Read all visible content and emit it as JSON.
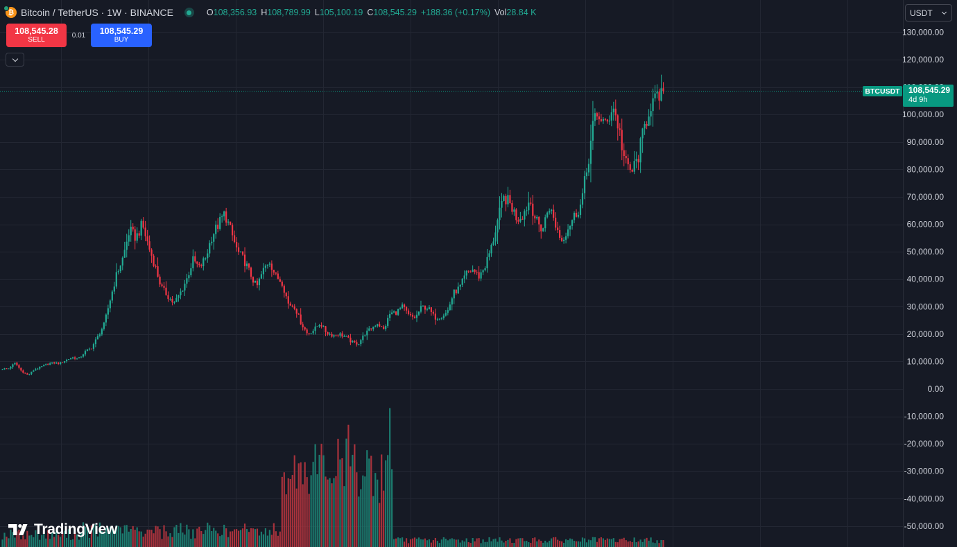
{
  "header": {
    "symbol_title": "Bitcoin / TetherUS · 1W · BINANCE",
    "ohlc": [
      {
        "key": "O",
        "value": "108,356.93"
      },
      {
        "key": "H",
        "value": "108,789.99"
      },
      {
        "key": "L",
        "value": "105,100.19"
      },
      {
        "key": "C",
        "value": "108,545.29"
      },
      {
        "key": "",
        "value": "+188.36 (+0.17%)"
      },
      {
        "key": "Vol",
        "value": "28.84 K"
      }
    ],
    "icon": "bitcoin-tether-icon"
  },
  "trade": {
    "sell_price": "108,545.28",
    "sell_label": "SELL",
    "spread": "0.01",
    "buy_price": "108,545.29",
    "buy_label": "BUY"
  },
  "currency_select": {
    "value": "USDT"
  },
  "price_tag": {
    "symbol": "BTCUSDT",
    "price": "108,545.29",
    "countdown": "4d 9h"
  },
  "brand": {
    "logo_text": "TradingView",
    "icon": "tradingview-logo-icon"
  },
  "colors": {
    "background": "#161a25",
    "grid": "#232733",
    "up": "#22ab94",
    "down": "#f23645",
    "volume_up": "#1c7a6e",
    "volume_down": "#a8323c",
    "price_tag": "#089981",
    "axis_text": "#d1d4dc"
  },
  "chart_data": {
    "type": "candlestick",
    "timeframe": "1W",
    "current_price": 108545.29,
    "ylim": [
      -55000,
      133000
    ],
    "y_ticks": [
      "130,000.00",
      "120,000.00",
      "110,000.00",
      "100,000.00",
      "90,000.00",
      "80,000.00",
      "70,000.00",
      "60,000.00",
      "50,000.00",
      "40,000.00",
      "30,000.00",
      "20,000.00",
      "10,000.00",
      "0.00",
      "-10,000.00",
      "-20,000.00",
      "-30,000.00",
      "-40,000.00",
      "-50,000.00"
    ],
    "y_tick_values": [
      130000,
      120000,
      110000,
      100000,
      90000,
      80000,
      70000,
      60000,
      50000,
      40000,
      30000,
      20000,
      10000,
      0,
      -10000,
      -20000,
      -30000,
      -40000,
      -50000
    ],
    "weekly_close_anchors": [
      7300,
      7500,
      9500,
      6500,
      5000,
      7000,
      8000,
      9000,
      9500,
      9300,
      10500,
      11500,
      11000,
      13500,
      15000,
      19000,
      23500,
      33000,
      42000,
      48000,
      58000,
      55000,
      60000,
      52000,
      45000,
      37000,
      34000,
      31000,
      35000,
      40000,
      47000,
      44000,
      48000,
      56000,
      60000,
      64000,
      57000,
      50000,
      47000,
      42000,
      37000,
      43000,
      47000,
      41000,
      39000,
      31000,
      30000,
      24000,
      20000,
      21500,
      24000,
      20500,
      19500,
      20000,
      19000,
      17000,
      16500,
      20000,
      22000,
      24000,
      21500,
      27500,
      28000,
      30000,
      26500,
      26000,
      30000,
      29500,
      26000,
      26500,
      28000,
      35000,
      37000,
      42000,
      43500,
      41000,
      45000,
      52000,
      62000,
      70000,
      67000,
      62000,
      64000,
      69000,
      61000,
      58000,
      67000,
      60000,
      54000,
      59000,
      63000,
      67000,
      80000,
      97000,
      100000,
      95000,
      104000,
      95000,
      82000,
      79000,
      84000,
      95000,
      104000,
      105000,
      108500
    ],
    "volume_profile": "spikes near the 2022 lows; smaller bars elsewhere",
    "volume_scale_max": "largest bar reaches the -7,000 level of the price axis"
  }
}
